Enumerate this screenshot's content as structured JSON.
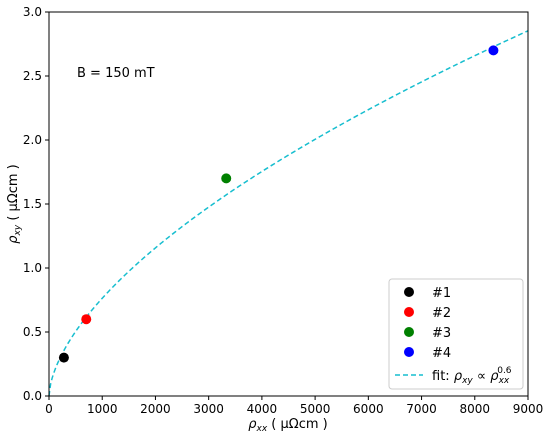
{
  "chart_data": {
    "type": "scatter",
    "title": "",
    "xlabel": "ρxx ( μΩcm )",
    "ylabel": "ρxy ( μΩcm )",
    "xlim": [
      0,
      9000
    ],
    "ylim": [
      0,
      3.0
    ],
    "x_ticks": [
      0,
      1000,
      2000,
      3000,
      4000,
      5000,
      6000,
      7000,
      8000,
      9000
    ],
    "y_ticks": [
      0.0,
      0.5,
      1.0,
      1.5,
      2.0,
      2.5,
      3.0
    ],
    "grid": false,
    "annotation": "B = 150 mT",
    "legend_position": "bottom-right",
    "series": [
      {
        "name": "#1",
        "color": "#000000",
        "points": [
          [
            280,
            0.3
          ]
        ]
      },
      {
        "name": "#2",
        "color": "#ff0000",
        "points": [
          [
            700,
            0.6
          ]
        ]
      },
      {
        "name": "#3",
        "color": "#008000",
        "points": [
          [
            3330,
            1.7
          ]
        ]
      },
      {
        "name": "#4",
        "color": "#0000ff",
        "points": [
          [
            8350,
            2.7
          ]
        ]
      }
    ],
    "fit": {
      "name": "fit: ρxy ∝ ρxx^0.6",
      "color": "#17becf",
      "style": "dashed",
      "coefficient": 0.0121,
      "exponent": 0.6
    }
  }
}
